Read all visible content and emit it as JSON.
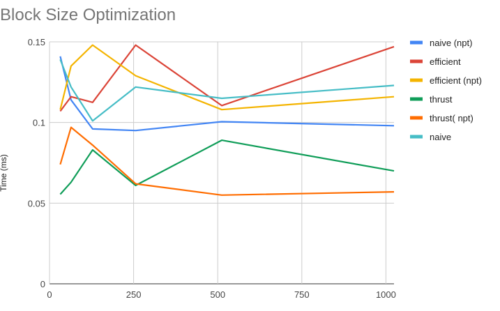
{
  "chart_data": {
    "type": "line",
    "title": "Block Size Optimization",
    "xlabel": "",
    "ylabel": "Time (ms)",
    "xlim": [
      0,
      1024
    ],
    "ylim": [
      0,
      0.15
    ],
    "xticks": [
      0,
      250,
      500,
      750,
      1000
    ],
    "yticks": [
      0,
      0.05,
      0.1,
      0.15
    ],
    "xtick_labels": [
      "0",
      "250",
      "500",
      "750",
      "1000"
    ],
    "ytick_labels": [
      "0",
      "0.05",
      "0.1",
      "0.15"
    ],
    "grid": true,
    "legend_position": "right",
    "x": [
      32,
      64,
      128,
      256,
      512,
      1024
    ],
    "series": [
      {
        "name": "naive (npt)",
        "color": "#4285f4",
        "values": [
          0.141,
          0.114,
          0.096,
          0.095,
          0.1005,
          0.098
        ]
      },
      {
        "name": "efficient",
        "color": "#db4437",
        "values": [
          0.107,
          0.116,
          0.1125,
          0.148,
          0.1105,
          0.147
        ]
      },
      {
        "name": "efficient (npt)",
        "color": "#f4b400",
        "values": [
          0.108,
          0.135,
          0.148,
          0.129,
          0.108,
          0.116
        ]
      },
      {
        "name": "thrust",
        "color": "#0f9d58",
        "values": [
          0.0555,
          0.063,
          0.083,
          0.061,
          0.089,
          0.07
        ]
      },
      {
        "name": "thrust( npt)",
        "color": "#ff6d01",
        "values": [
          0.074,
          0.097,
          0.086,
          0.062,
          0.055,
          0.057
        ]
      },
      {
        "name": "naive",
        "color": "#46bdc6",
        "values": [
          0.139,
          0.122,
          0.101,
          0.122,
          0.115,
          0.123
        ]
      }
    ]
  }
}
